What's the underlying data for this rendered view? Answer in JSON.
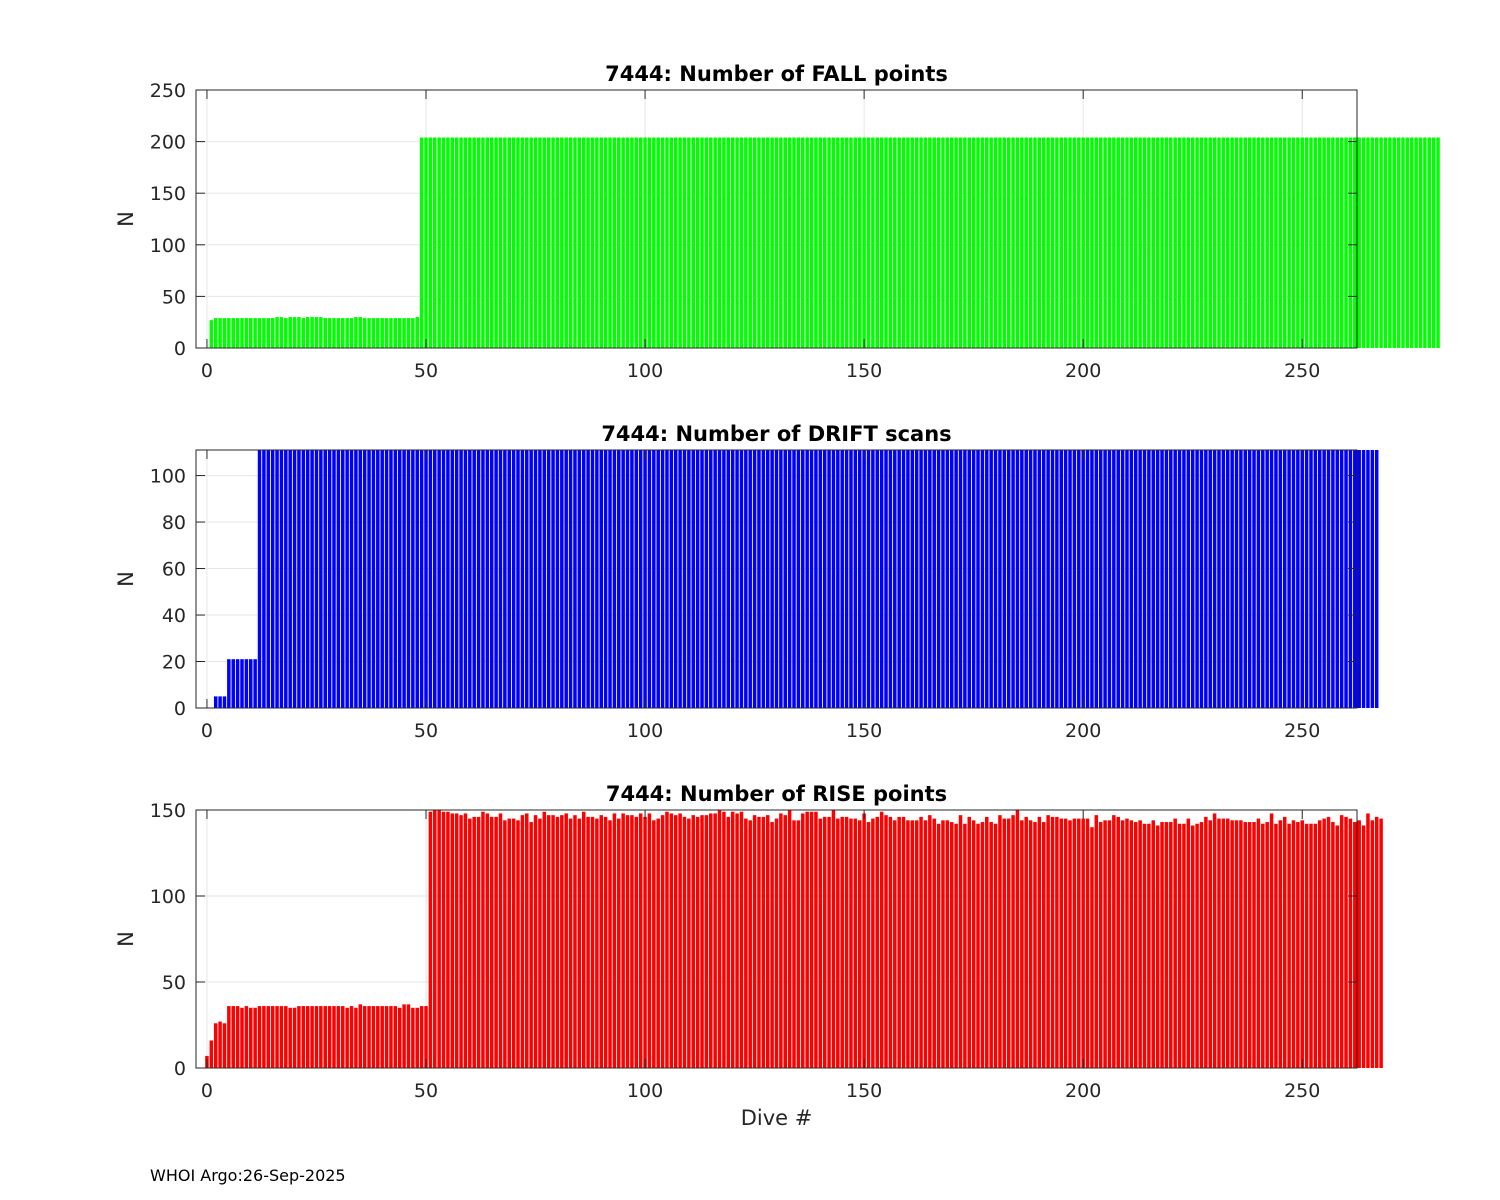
{
  "footer": "WHOI Argo:26-Sep-2025",
  "chart_data": [
    {
      "type": "bar",
      "title": "7444: Number of FALL points",
      "xlabel": "",
      "ylabel": "N",
      "xlim": [
        -2.5,
        262.5
      ],
      "ylim": [
        0,
        250
      ],
      "xticks": [
        0,
        50,
        100,
        150,
        200,
        250
      ],
      "yticks": [
        0,
        50,
        100,
        150,
        200,
        250
      ],
      "grid": true,
      "color": "#00ff00",
      "series": [
        {
          "name": "FALL points",
          "x_start": 1,
          "values": [
            27,
            29,
            29,
            29,
            29,
            29,
            29,
            29,
            29,
            29,
            29,
            29,
            29,
            29,
            29,
            30,
            30,
            29,
            30,
            30,
            30,
            29,
            30,
            30,
            30,
            30,
            29,
            29,
            29,
            29,
            29,
            29,
            29,
            30,
            30,
            29,
            29,
            29,
            29,
            29,
            29,
            29,
            29,
            29,
            29,
            29,
            29,
            30,
            204,
            204,
            204,
            204,
            204,
            204,
            204,
            204,
            204,
            204,
            204,
            204,
            204,
            204,
            204,
            204,
            204,
            204,
            204,
            204,
            204,
            204,
            204,
            204,
            204,
            204,
            204,
            204,
            204,
            204,
            204,
            204,
            204,
            204,
            204,
            204,
            204,
            204,
            204,
            204,
            204,
            204,
            204,
            204,
            204,
            204,
            204,
            204,
            204,
            204,
            204,
            204,
            204,
            204,
            204,
            204,
            204,
            204,
            204,
            204,
            204,
            204,
            204,
            204,
            204,
            204,
            204,
            204,
            204,
            204,
            204,
            204,
            204,
            204,
            204,
            204,
            204,
            204,
            204,
            204,
            204,
            204,
            204,
            204,
            204,
            204,
            204,
            204,
            204,
            204,
            204,
            204,
            204,
            204,
            204,
            204,
            204,
            204,
            204,
            204,
            204,
            204,
            204,
            204,
            204,
            204,
            204,
            204,
            204,
            204,
            204,
            204,
            204,
            204,
            204,
            204,
            204,
            204,
            204,
            204,
            204,
            204,
            204,
            204,
            204,
            204,
            204,
            204,
            204,
            204,
            204,
            204,
            204,
            204,
            204,
            204,
            204,
            204,
            204,
            204,
            204,
            204,
            204,
            204,
            204,
            204,
            204,
            204,
            204,
            204,
            204,
            204,
            204,
            204,
            204,
            204,
            204,
            204,
            204,
            204,
            204,
            204,
            204,
            204,
            204,
            204,
            204,
            204,
            204,
            204,
            204,
            204,
            204,
            204,
            204,
            204,
            204,
            204,
            204,
            204,
            204,
            204,
            204,
            204,
            204,
            204,
            204,
            204,
            204,
            204,
            204,
            204,
            204,
            204,
            204,
            204,
            204,
            204,
            204,
            204,
            204,
            204,
            204,
            204,
            204,
            204,
            204,
            204,
            204,
            204,
            204,
            204,
            204,
            204,
            204,
            204,
            204,
            204,
            204,
            204,
            204,
            204,
            204,
            204,
            204,
            204,
            204,
            204,
            204,
            204,
            204,
            204,
            204
          ]
        }
      ]
    },
    {
      "type": "bar",
      "title": "7444: Number of DRIFT scans",
      "xlabel": "",
      "ylabel": "N",
      "xlim": [
        -2.5,
        262.5
      ],
      "ylim": [
        0,
        111
      ],
      "xticks": [
        0,
        50,
        100,
        150,
        200,
        250
      ],
      "yticks": [
        0,
        20,
        40,
        60,
        80,
        100
      ],
      "grid": true,
      "color": "#0000ff",
      "series": [
        {
          "name": "DRIFT scans",
          "x_start": 1,
          "values": [
            0,
            5,
            5,
            5,
            21,
            21,
            21,
            21,
            21,
            21,
            21,
            111,
            111,
            111,
            111,
            111,
            111,
            111,
            111,
            111,
            111,
            111,
            111,
            111,
            111,
            111,
            111,
            111,
            111,
            111,
            111,
            111,
            111,
            111,
            111,
            111,
            111,
            111,
            111,
            111,
            111,
            111,
            111,
            111,
            111,
            111,
            111,
            111,
            111,
            111,
            111,
            111,
            111,
            111,
            111,
            111,
            111,
            111,
            111,
            111,
            111,
            111,
            111,
            111,
            111,
            111,
            111,
            111,
            111,
            111,
            111,
            111,
            111,
            111,
            111,
            111,
            111,
            111,
            111,
            111,
            111,
            111,
            111,
            111,
            111,
            111,
            111,
            111,
            111,
            111,
            111,
            111,
            111,
            111,
            111,
            111,
            111,
            111,
            111,
            111,
            111,
            111,
            111,
            111,
            111,
            111,
            111,
            111,
            111,
            111,
            111,
            111,
            111,
            111,
            111,
            111,
            111,
            111,
            111,
            111,
            111,
            111,
            111,
            111,
            111,
            111,
            111,
            111,
            111,
            111,
            111,
            111,
            111,
            111,
            111,
            111,
            111,
            111,
            111,
            111,
            111,
            111,
            111,
            111,
            111,
            111,
            111,
            111,
            111,
            111,
            111,
            111,
            111,
            111,
            111,
            111,
            111,
            111,
            111,
            111,
            111,
            111,
            111,
            111,
            111,
            111,
            111,
            111,
            111,
            111,
            111,
            111,
            111,
            111,
            111,
            111,
            111,
            111,
            111,
            111,
            111,
            111,
            111,
            111,
            111,
            111,
            111,
            111,
            111,
            111,
            111,
            111,
            111,
            111,
            111,
            111,
            111,
            111,
            111,
            111,
            111,
            111,
            111,
            111,
            111,
            111,
            111,
            111,
            111,
            111,
            111,
            111,
            111,
            111,
            111,
            111,
            111,
            111,
            111,
            111,
            111,
            111,
            111,
            111,
            111,
            111,
            111,
            111,
            111,
            111,
            111,
            111,
            111,
            111,
            111,
            111,
            111,
            111,
            111,
            111,
            111,
            111,
            111,
            111,
            111,
            111,
            111,
            111,
            111,
            111,
            111,
            111,
            111,
            111,
            111,
            111,
            111,
            111,
            111,
            111,
            111,
            111,
            111,
            111,
            111,
            111,
            111
          ]
        }
      ]
    },
    {
      "type": "bar",
      "title": "7444: Number of RISE points",
      "xlabel": "Dive #",
      "ylabel": "N",
      "xlim": [
        -2.5,
        262.5
      ],
      "ylim": [
        0,
        150
      ],
      "xticks": [
        0,
        50,
        100,
        150,
        200,
        250
      ],
      "yticks": [
        0,
        50,
        100,
        150
      ],
      "grid": true,
      "color": "#ff0000",
      "series": [
        {
          "name": "RISE points",
          "x_start": 0,
          "values": [
            7,
            16,
            26,
            27,
            26,
            36,
            36,
            36,
            35,
            36,
            35,
            35,
            36,
            36,
            36,
            36,
            36,
            36,
            36,
            35,
            35,
            36,
            36,
            36,
            36,
            36,
            36,
            36,
            36,
            36,
            36,
            36,
            35,
            36,
            35,
            37,
            36,
            36,
            36,
            36,
            36,
            36,
            36,
            36,
            35,
            37,
            37,
            35,
            35,
            36,
            36,
            149,
            150,
            150,
            149,
            149,
            148,
            148,
            147,
            148,
            145,
            146,
            146,
            149,
            148,
            146,
            146,
            148,
            144,
            145,
            145,
            144,
            147,
            148,
            143,
            147,
            145,
            149,
            147,
            147,
            146,
            147,
            148,
            145,
            147,
            145,
            149,
            146,
            146,
            145,
            147,
            146,
            144,
            148,
            145,
            148,
            147,
            147,
            146,
            148,
            146,
            148,
            144,
            145,
            147,
            149,
            148,
            147,
            148,
            146,
            145,
            147,
            146,
            147,
            147,
            148,
            148,
            150,
            149,
            146,
            149,
            148,
            149,
            145,
            144,
            147,
            146,
            146,
            147,
            143,
            145,
            148,
            147,
            150,
            144,
            144,
            148,
            149,
            149,
            149,
            145,
            146,
            146,
            150,
            145,
            146,
            146,
            145,
            145,
            144,
            148,
            143,
            145,
            146,
            149,
            147,
            146,
            144,
            146,
            146,
            144,
            144,
            144,
            146,
            144,
            147,
            145,
            142,
            144,
            144,
            143,
            142,
            147,
            142,
            146,
            144,
            142,
            143,
            146,
            143,
            142,
            147,
            145,
            145,
            147,
            150,
            144,
            146,
            144,
            143,
            146,
            143,
            147,
            146,
            146,
            145,
            145,
            144,
            145,
            145,
            145,
            145,
            140,
            147,
            143,
            144,
            144,
            147,
            146,
            144,
            145,
            144,
            143,
            144,
            142,
            142,
            144,
            141,
            143,
            143,
            143,
            145,
            142,
            142,
            145,
            141,
            142,
            143,
            146,
            144,
            148,
            145,
            145,
            145,
            144,
            144,
            144,
            143,
            143,
            143,
            145,
            142,
            143,
            148,
            142,
            144,
            146,
            142,
            144,
            143,
            144,
            142,
            142,
            142,
            144,
            145,
            146,
            143,
            141,
            147,
            146,
            145,
            143,
            144,
            141,
            148,
            144,
            146,
            145
          ]
        }
      ]
    }
  ]
}
